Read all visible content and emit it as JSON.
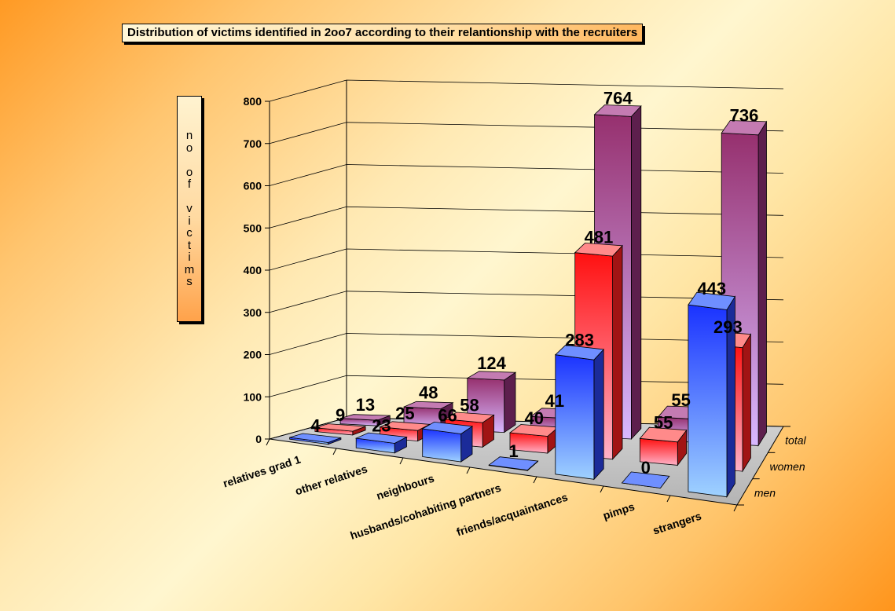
{
  "chart_data": {
    "type": "bar",
    "title": "Distribution of victims identified in 2oo7 according to their relantionship with the recruiters",
    "ylabel": "no of victims",
    "categories": [
      "relatives grad 1",
      "other relatives",
      "neighbours",
      "husbands/cohabiting partners",
      "friends/acquaintances",
      "pimps",
      "strangers"
    ],
    "series": [
      {
        "name": "men",
        "values": [
          4,
          23,
          66,
          1,
          283,
          0,
          443
        ],
        "color": "#3355ff"
      },
      {
        "name": "women",
        "values": [
          9,
          25,
          58,
          40,
          481,
          55,
          293
        ],
        "color": "#ff2a2a"
      },
      {
        "name": "total",
        "values": [
          13,
          48,
          124,
          41,
          764,
          55,
          736
        ],
        "color": "#a13c8c"
      }
    ],
    "yticks": [
      "0",
      "100",
      "200",
      "300",
      "400",
      "500",
      "600",
      "700",
      "800"
    ],
    "ylim": [
      0,
      800
    ],
    "grid": true,
    "view": "3d-clustered-column"
  }
}
